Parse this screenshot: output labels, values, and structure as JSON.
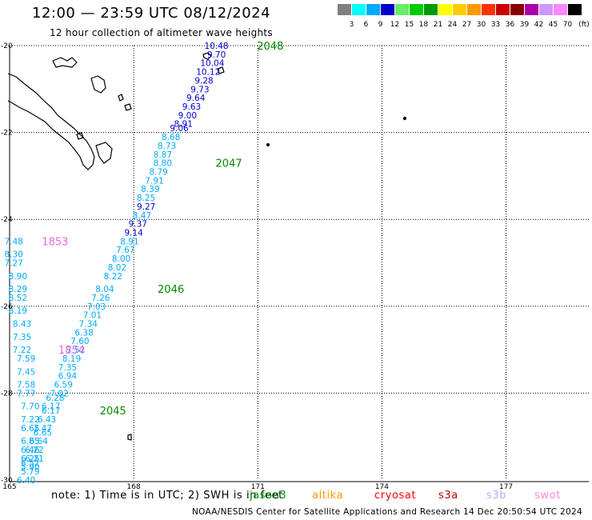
{
  "header": {
    "title": "12:00 — 23:59 UTC 08/12/2024",
    "subtitle": "12 hour collection of altimeter wave heights"
  },
  "legend": {
    "unit": "(ft)",
    "colors": [
      "#808080",
      "#00ffff",
      "#00aaff",
      "#0000cc",
      "#66ee66",
      "#00cc00",
      "#009900",
      "#ffff00",
      "#ffcc00",
      "#ff9900",
      "#ff3300",
      "#cc0000",
      "#880000",
      "#aa00aa",
      "#cc99ff",
      "#ff88ff",
      "#000000"
    ],
    "labels": [
      "3",
      "6",
      "9",
      "12",
      "15",
      "18",
      "21",
      "24",
      "27",
      "30",
      "33",
      "36",
      "39",
      "42",
      "45",
      "70"
    ]
  },
  "axes": {
    "lat_labels": [
      "-20",
      "-22",
      "-24",
      "-26",
      "-28",
      "-30"
    ],
    "lon_labels": [
      "165",
      "168",
      "171",
      "174",
      "177"
    ]
  },
  "passes": [
    {
      "id": "2048",
      "color": "#008800"
    },
    {
      "id": "2047",
      "color": "#008800"
    },
    {
      "id": "2046",
      "color": "#008800"
    },
    {
      "id": "2045",
      "color": "#008800"
    },
    {
      "id": "1853",
      "color": "#ee66dd"
    },
    {
      "id": "1854",
      "color": "#ee66dd"
    }
  ],
  "chart_data": {
    "type": "scatter",
    "title": "12:00 — 23:59 UTC 08/12/2024",
    "subtitle": "12 hour collection of altimeter wave heights",
    "xlim": [
      165,
      179
    ],
    "ylim": [
      -30,
      -20
    ],
    "grid": true,
    "series": [
      {
        "name": "2048",
        "points": [
          {
            "x": 170.0,
            "y": -20.0,
            "v": "10.48",
            "c": "#0000cc"
          },
          {
            "x": 170.0,
            "y": -20.2,
            "v": "9.70",
            "c": "#0000cc"
          },
          {
            "x": 169.9,
            "y": -20.4,
            "v": "10.04",
            "c": "#0000cc"
          },
          {
            "x": 169.8,
            "y": -20.6,
            "v": "10.12",
            "c": "#0000cc"
          },
          {
            "x": 169.7,
            "y": -20.8,
            "v": "9.28",
            "c": "#0000cc"
          },
          {
            "x": 169.6,
            "y": -21.0,
            "v": "9.73",
            "c": "#0000cc"
          },
          {
            "x": 169.5,
            "y": -21.2,
            "v": "9.64",
            "c": "#0000cc"
          },
          {
            "x": 169.4,
            "y": -21.4,
            "v": "9.63",
            "c": "#0000cc"
          },
          {
            "x": 169.3,
            "y": -21.6,
            "v": "9.00",
            "c": "#0000cc"
          },
          {
            "x": 169.2,
            "y": -21.8,
            "v": "8.91",
            "c": "#0000cc"
          },
          {
            "x": 169.1,
            "y": -21.9,
            "v": "9.06",
            "c": "#0000cc"
          }
        ]
      },
      {
        "name": "2047",
        "points": [
          {
            "x": 168.9,
            "y": -22.1,
            "v": "8.68",
            "c": "#00aaff"
          },
          {
            "x": 168.8,
            "y": -22.3,
            "v": "8.73",
            "c": "#00aaff"
          },
          {
            "x": 168.7,
            "y": -22.5,
            "v": "8.87",
            "c": "#00aaff"
          },
          {
            "x": 168.7,
            "y": -22.7,
            "v": "8.80",
            "c": "#00aaff"
          },
          {
            "x": 168.6,
            "y": -22.9,
            "v": "8.79",
            "c": "#00aaff"
          },
          {
            "x": 168.5,
            "y": -23.1,
            "v": "7.91",
            "c": "#00aaff"
          },
          {
            "x": 168.4,
            "y": -23.3,
            "v": "8.39",
            "c": "#00aaff"
          },
          {
            "x": 168.3,
            "y": -23.5,
            "v": "8.25",
            "c": "#00aaff"
          },
          {
            "x": 168.3,
            "y": -23.7,
            "v": "9.27",
            "c": "#0000cc"
          },
          {
            "x": 168.2,
            "y": -23.9,
            "v": "8.47",
            "c": "#00aaff"
          },
          {
            "x": 168.1,
            "y": -24.1,
            "v": "9.37",
            "c": "#0000cc"
          },
          {
            "x": 168.0,
            "y": -24.3,
            "v": "9.14",
            "c": "#0000cc"
          },
          {
            "x": 167.9,
            "y": -24.5,
            "v": "8.91",
            "c": "#00aaff"
          },
          {
            "x": 167.8,
            "y": -24.7,
            "v": "7.67",
            "c": "#00aaff"
          },
          {
            "x": 167.7,
            "y": -24.9,
            "v": "8.00",
            "c": "#00aaff"
          },
          {
            "x": 167.6,
            "y": -25.1,
            "v": "8.02",
            "c": "#00aaff"
          },
          {
            "x": 167.5,
            "y": -25.3,
            "v": "8.22",
            "c": "#00aaff"
          }
        ]
      },
      {
        "name": "2046",
        "points": [
          {
            "x": 167.3,
            "y": -25.6,
            "v": "8.04",
            "c": "#00aaff"
          },
          {
            "x": 167.2,
            "y": -25.8,
            "v": "7.26",
            "c": "#00aaff"
          },
          {
            "x": 167.1,
            "y": -26.0,
            "v": "7.03",
            "c": "#00aaff"
          },
          {
            "x": 167.0,
            "y": -26.2,
            "v": "7.01",
            "c": "#00aaff"
          },
          {
            "x": 166.9,
            "y": -26.4,
            "v": "7.34",
            "c": "#00aaff"
          },
          {
            "x": 166.8,
            "y": -26.6,
            "v": "6.38",
            "c": "#00aaff"
          },
          {
            "x": 166.7,
            "y": -26.8,
            "v": "7.60",
            "c": "#00aaff"
          },
          {
            "x": 166.6,
            "y": -27.0,
            "v": "7.52",
            "c": "#00aaff"
          },
          {
            "x": 166.5,
            "y": -27.2,
            "v": "8.19",
            "c": "#00aaff"
          },
          {
            "x": 166.4,
            "y": -27.4,
            "v": "7.35",
            "c": "#00aaff"
          },
          {
            "x": 166.4,
            "y": -27.6,
            "v": "6.94",
            "c": "#00aaff"
          },
          {
            "x": 166.3,
            "y": -27.8,
            "v": "6.59",
            "c": "#00aaff"
          },
          {
            "x": 166.2,
            "y": -28.0,
            "v": "7.02",
            "c": "#00aaff"
          },
          {
            "x": 166.1,
            "y": -28.1,
            "v": "6.28",
            "c": "#00aaff"
          },
          {
            "x": 166.0,
            "y": -28.3,
            "v": "6.17",
            "c": "#00aaff"
          }
        ]
      },
      {
        "name": "2045",
        "points": [
          {
            "x": 166.0,
            "y": -28.4,
            "v": "6.17",
            "c": "#00aaff"
          },
          {
            "x": 165.9,
            "y": -28.6,
            "v": "6.43",
            "c": "#00aaff"
          },
          {
            "x": 165.8,
            "y": -28.8,
            "v": "7.47",
            "c": "#00aaff"
          },
          {
            "x": 165.8,
            "y": -28.9,
            "v": "6.65",
            "c": "#00aaff"
          },
          {
            "x": 165.7,
            "y": -29.1,
            "v": "6.64",
            "c": "#00aaff"
          },
          {
            "x": 165.6,
            "y": -29.3,
            "v": "6.22",
            "c": "#00aaff"
          },
          {
            "x": 165.6,
            "y": -29.5,
            "v": "6.21",
            "c": "#00aaff"
          },
          {
            "x": 165.5,
            "y": -29.7,
            "v": "5.90",
            "c": "#00aaff"
          }
        ]
      },
      {
        "name": "1853",
        "points": [
          {
            "x": 165.1,
            "y": -24.5,
            "v": "7.48",
            "c": "#00aaff"
          },
          {
            "x": 165.1,
            "y": -24.8,
            "v": "8.30",
            "c": "#00aaff"
          },
          {
            "x": 165.1,
            "y": -25.0,
            "v": "7.27",
            "c": "#00aaff"
          },
          {
            "x": 165.2,
            "y": -25.3,
            "v": "8.90",
            "c": "#00aaff"
          },
          {
            "x": 165.2,
            "y": -25.6,
            "v": "8.29",
            "c": "#00aaff"
          },
          {
            "x": 165.2,
            "y": -25.8,
            "v": "8.52",
            "c": "#00aaff"
          },
          {
            "x": 165.2,
            "y": -26.1,
            "v": "8.19",
            "c": "#00aaff"
          },
          {
            "x": 165.3,
            "y": -26.4,
            "v": "8.43",
            "c": "#00aaff"
          }
        ]
      },
      {
        "name": "1854",
        "points": [
          {
            "x": 165.3,
            "y": -26.7,
            "v": "7.35",
            "c": "#00aaff"
          },
          {
            "x": 165.3,
            "y": -27.0,
            "v": "7.22",
            "c": "#00aaff"
          },
          {
            "x": 165.4,
            "y": -27.2,
            "v": "7.59",
            "c": "#00aaff"
          },
          {
            "x": 165.4,
            "y": -27.5,
            "v": "7.45",
            "c": "#00aaff"
          },
          {
            "x": 165.4,
            "y": -27.8,
            "v": "7.58",
            "c": "#00aaff"
          },
          {
            "x": 165.4,
            "y": -28.0,
            "v": "7.77",
            "c": "#00aaff"
          },
          {
            "x": 165.5,
            "y": -28.3,
            "v": "7.70",
            "c": "#00aaff"
          },
          {
            "x": 165.5,
            "y": -28.6,
            "v": "7.22",
            "c": "#00aaff"
          },
          {
            "x": 165.5,
            "y": -28.8,
            "v": "6.65",
            "c": "#00aaff"
          },
          {
            "x": 165.5,
            "y": -29.1,
            "v": "6.85",
            "c": "#00aaff"
          },
          {
            "x": 165.5,
            "y": -29.3,
            "v": "6.46",
            "c": "#00aaff"
          },
          {
            "x": 165.5,
            "y": -29.5,
            "v": "6.25",
            "c": "#00aaff"
          },
          {
            "x": 165.5,
            "y": -29.8,
            "v": "5.79",
            "c": "#00aaff"
          },
          {
            "x": 165.5,
            "y": -29.6,
            "v": "6.52",
            "c": "#00aaff"
          },
          {
            "x": 165.4,
            "y": -30.0,
            "v": "6.40",
            "c": "#00aaff"
          }
        ]
      }
    ]
  },
  "footer": {
    "note": "note:  1) Time is in UTC; 2) SWH is in feet",
    "credit": "NOAA/NESDIS Center for Satellite Applications and Research    14 Dec 20:50:54 UTC 2024",
    "satellites": [
      {
        "name": "jason3",
        "color": "#009900"
      },
      {
        "name": "altika",
        "color": "#ff9900"
      },
      {
        "name": "cryosat",
        "color": "#ff0000"
      },
      {
        "name": "s3a",
        "color": "#bb0000"
      },
      {
        "name": "s3b",
        "color": "#bbaaff"
      },
      {
        "name": "swot",
        "color": "#ff88dd"
      }
    ]
  }
}
